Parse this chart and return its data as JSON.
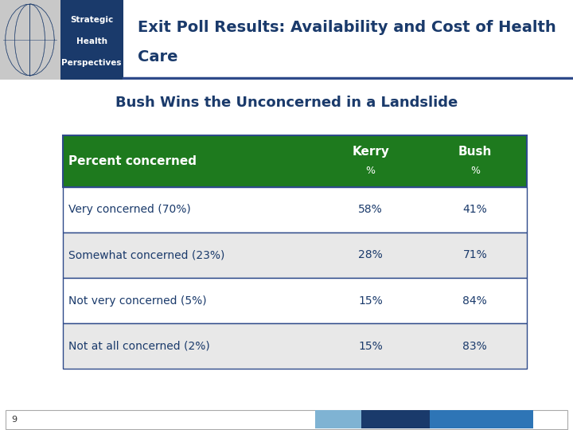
{
  "title_line1": "Exit Poll Results: Availability and Cost of Health",
  "title_line2": "Care",
  "subtitle": "Bush Wins the Unconcerned in a Landslide",
  "header_bg": "#1a5276",
  "header_text_color": "#ffffff",
  "logo_bg": "#1a3a6b",
  "logo_text": [
    "Strategic",
    "Health",
    "Perspectives"
  ],
  "table_header_bg": "#1e7a1e",
  "table_header_text_color": "#ffffff",
  "table_row_bg_odd": "#ffffff",
  "table_row_bg_even": "#e8e8e8",
  "table_border_color": "#2e4a8a",
  "table_text_color": "#1a3a6b",
  "table_data_text_color": "#1a3a6b",
  "columns": [
    "Percent concerned",
    "Kerry\n%",
    "Bush\n%"
  ],
  "rows": [
    [
      "Very concerned (70%)",
      "58%",
      "41%"
    ],
    [
      "Somewhat concerned (23%)",
      "28%",
      "71%"
    ],
    [
      "Not very concerned (5%)",
      "15%",
      "84%"
    ],
    [
      "Not at all concerned (2%)",
      "15%",
      "83%"
    ]
  ],
  "footer_page_num": "9",
  "footer_bar_colors": [
    "#7fb3d3",
    "#1a3a6b",
    "#2e75b6"
  ],
  "bg_color": "#ffffff",
  "title_text_color": "#1a3a6b",
  "subtitle_text_color": "#1a3a6b",
  "header_line_color": "#2e4a8a"
}
